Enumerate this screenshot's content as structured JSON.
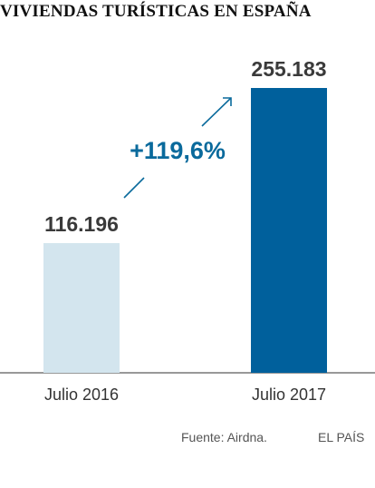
{
  "chart_data": {
    "type": "bar",
    "title": "VIVIENDAS TURÍSTICAS EN ESPAÑA",
    "categories": [
      "Julio 2016",
      "Julio 2017"
    ],
    "values": [
      116196,
      255183
    ],
    "value_labels": [
      "116.196",
      "255.183"
    ],
    "bar_colors": [
      "#d3e5ee",
      "#00609c"
    ],
    "annotation": "+119,6%",
    "annotation_color": "#0a6a9c",
    "ylim": [
      0,
      255183
    ],
    "grid": false,
    "xlabel": "",
    "ylabel": ""
  },
  "footer": {
    "source": "Fuente: Airdna.",
    "brand": "EL PAÍS"
  }
}
